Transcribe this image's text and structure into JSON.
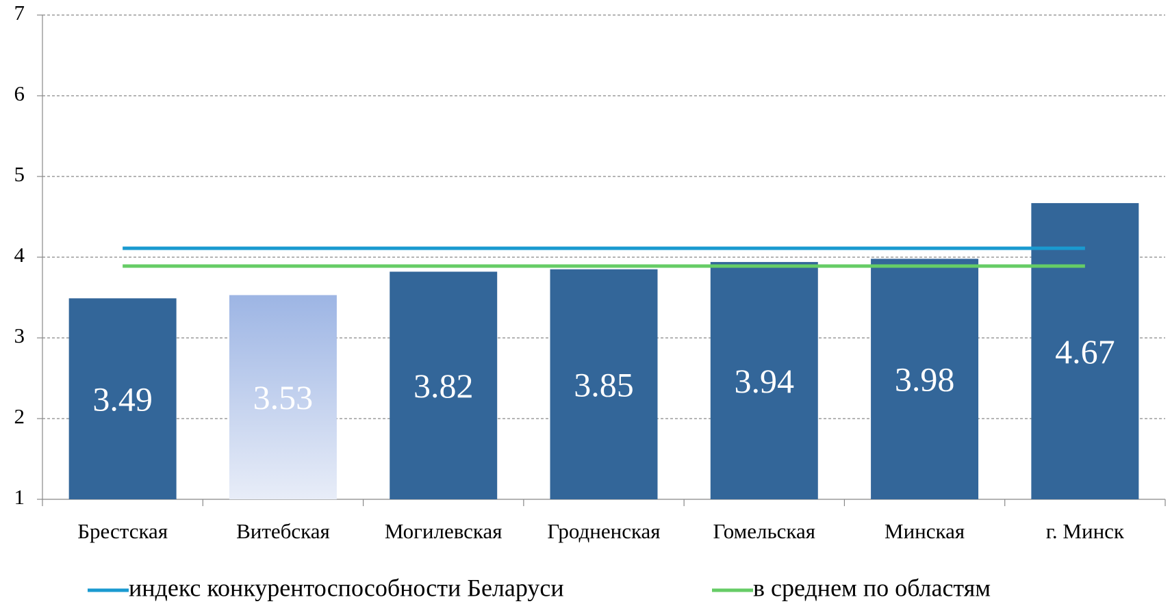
{
  "chart_data": {
    "type": "bar",
    "categories": [
      "Брестская",
      "Витебская",
      "Могилевская",
      "Гродненская",
      "Гомельская",
      "Минская",
      "г. Минск"
    ],
    "values": [
      3.49,
      3.53,
      3.82,
      3.85,
      3.94,
      3.98,
      4.67
    ],
    "colors": [
      "#336699",
      [
        "#9db5e4",
        "#e8edf8"
      ],
      "#336699",
      "#336699",
      "#336699",
      "#336699",
      "#336699"
    ],
    "series": [
      {
        "name": "индекс конкурентоспособности Беларуси",
        "color": "#1a9ad0",
        "values": [
          4.11,
          4.11,
          4.11,
          4.11,
          4.11,
          4.11,
          4.11
        ]
      },
      {
        "name": "в среднем по областям",
        "color": "#66cc66",
        "values": [
          3.89,
          3.89,
          3.89,
          3.89,
          3.89,
          3.89,
          3.89
        ]
      }
    ],
    "ylim": [
      1,
      7
    ],
    "yticks": [
      1,
      2,
      3,
      4,
      5,
      6,
      7
    ],
    "grid": true,
    "legend": "bottom"
  }
}
